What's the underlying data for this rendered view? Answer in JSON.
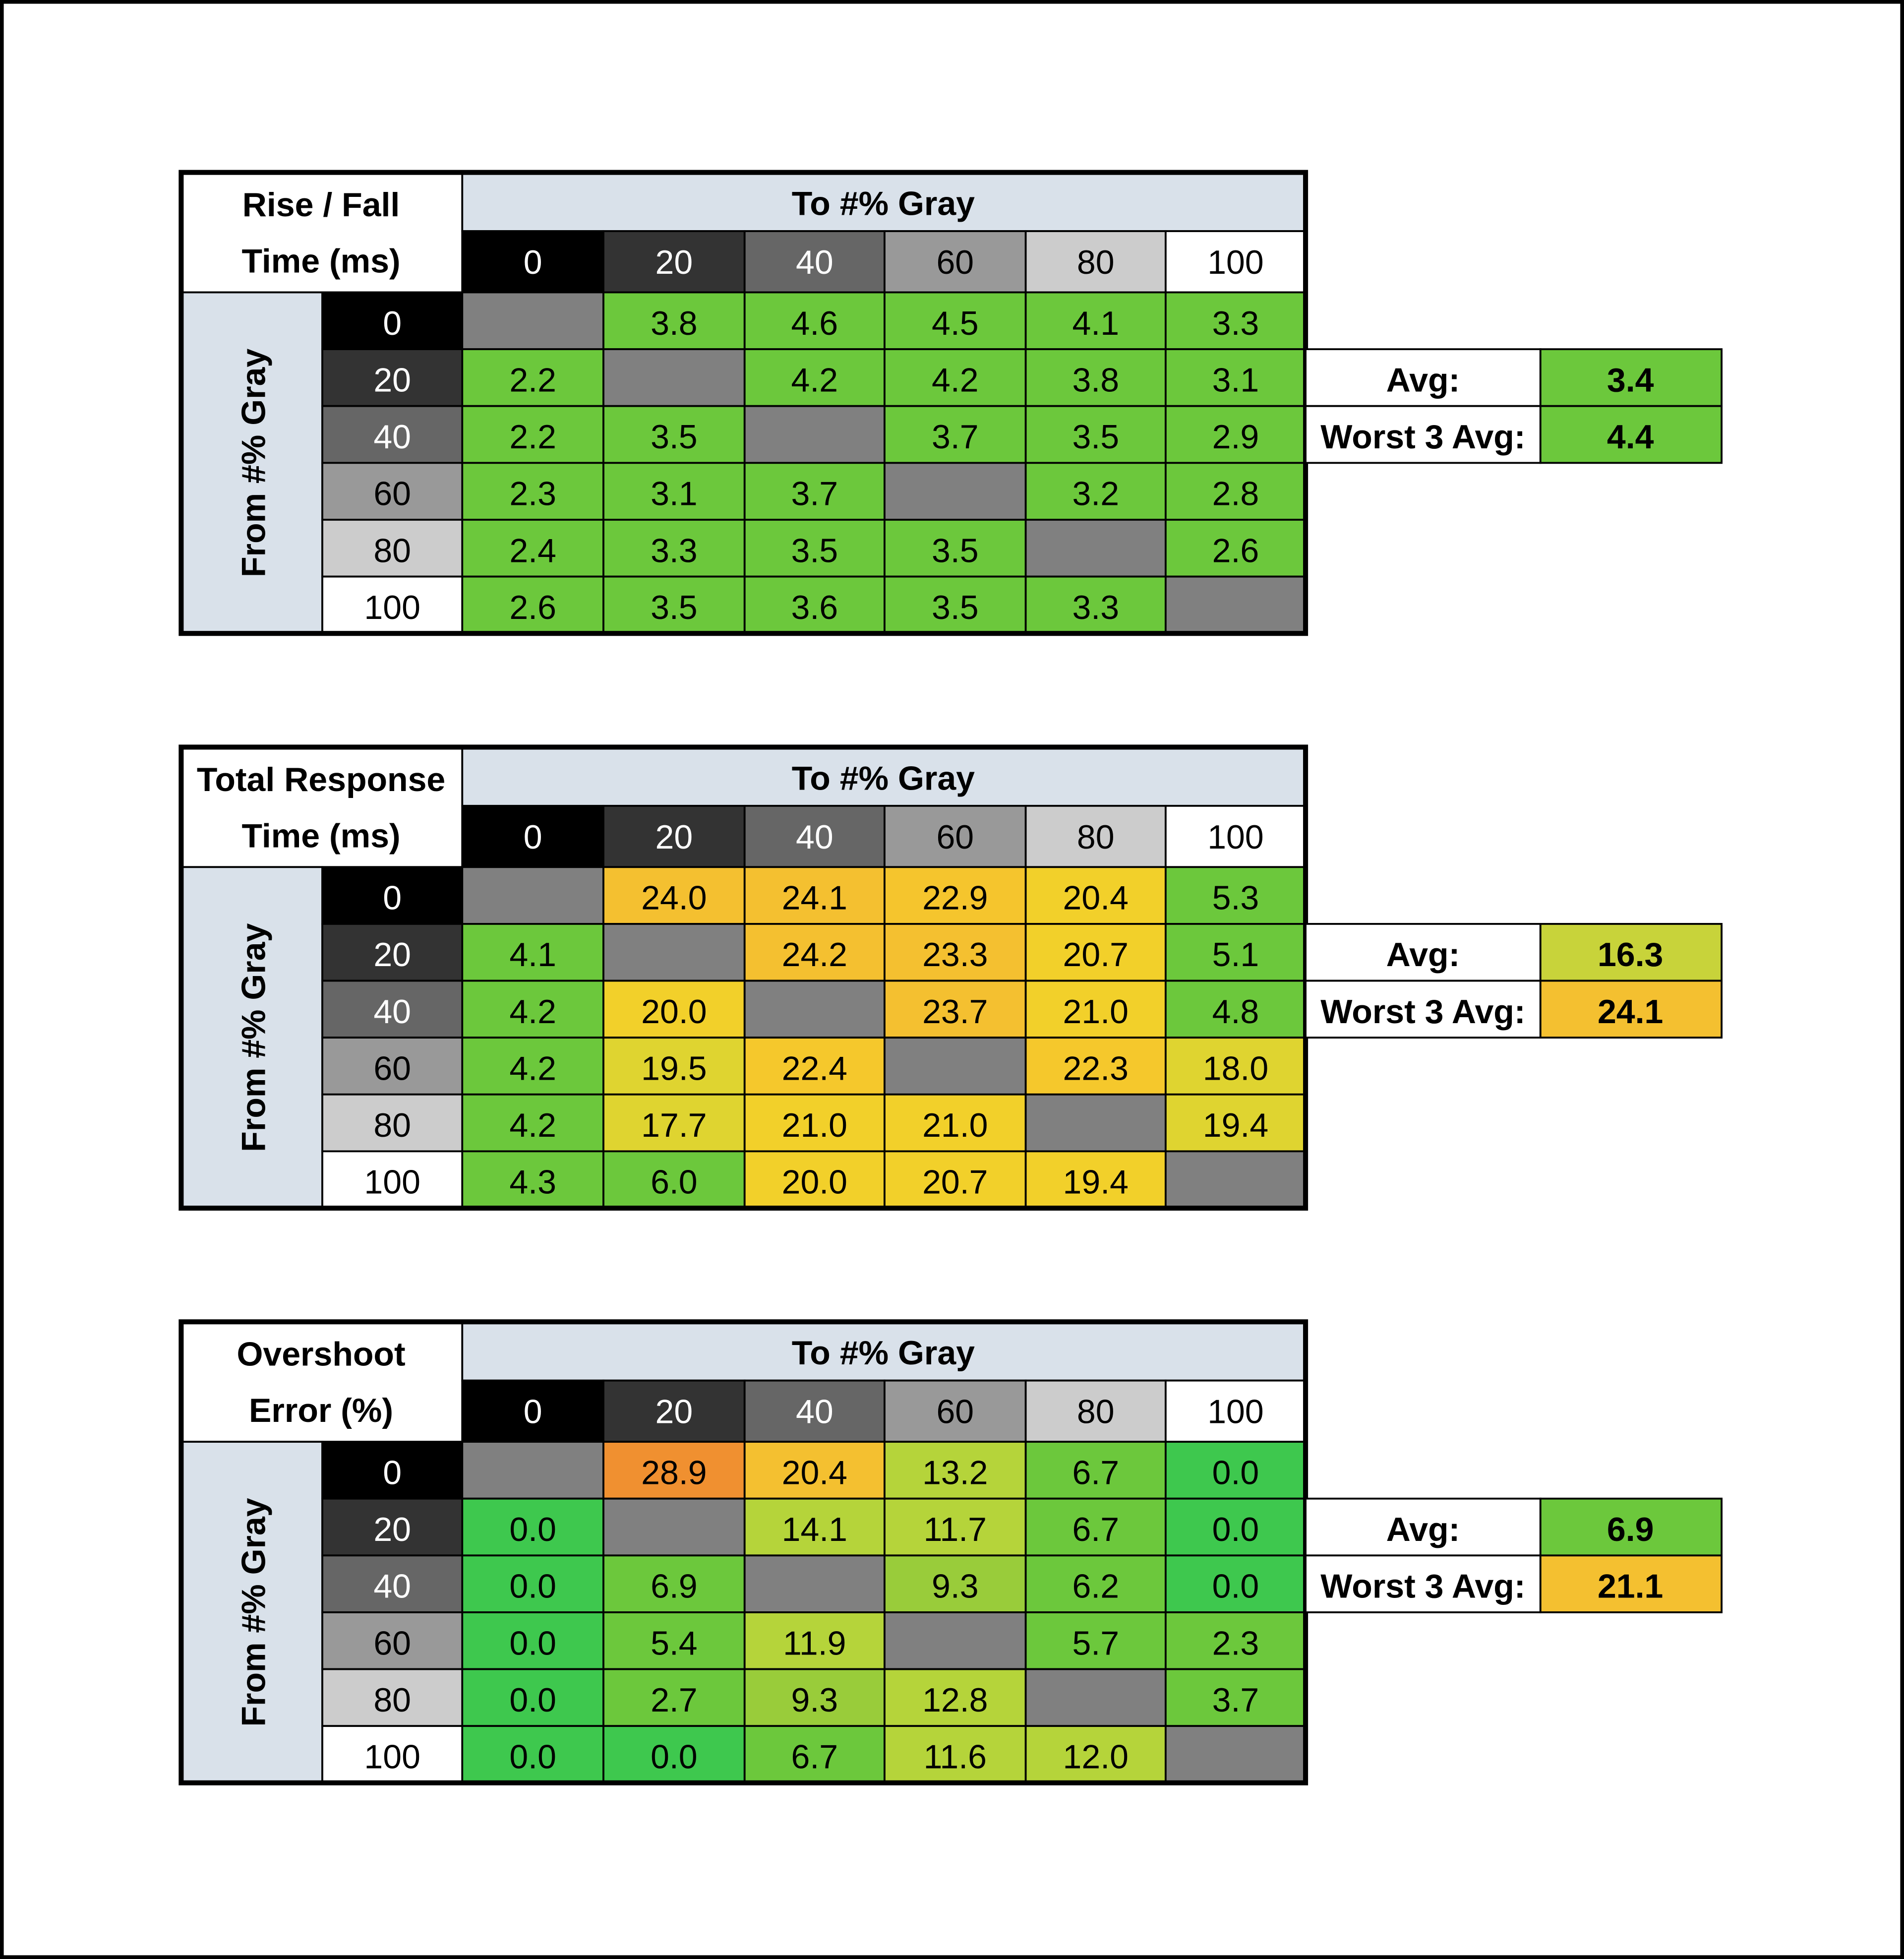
{
  "tables": [
    {
      "title_lines": [
        "Rise / Fall",
        "Time (ms)"
      ],
      "column_header": "To #% Gray",
      "row_header": "From #% Gray",
      "columns": [
        "0",
        "20",
        "40",
        "60",
        "80",
        "100"
      ],
      "rows": [
        "0",
        "20",
        "40",
        "60",
        "80",
        "100"
      ],
      "cells": [
        [
          null,
          "3.8",
          "4.6",
          "4.5",
          "4.1",
          "3.3"
        ],
        [
          "2.2",
          null,
          "4.2",
          "4.2",
          "3.8",
          "3.1"
        ],
        [
          "2.2",
          "3.5",
          null,
          "3.7",
          "3.5",
          "2.9"
        ],
        [
          "2.3",
          "3.1",
          "3.7",
          null,
          "3.2",
          "2.8"
        ],
        [
          "2.4",
          "3.3",
          "3.5",
          "3.5",
          null,
          "2.6"
        ],
        [
          "2.6",
          "3.5",
          "3.6",
          "3.5",
          "3.3",
          null
        ]
      ],
      "cell_colors": [
        [
          null,
          "#6cc83c",
          "#6cc83c",
          "#6cc83c",
          "#6cc83c",
          "#6cc83c"
        ],
        [
          "#6cc83c",
          null,
          "#6cc83c",
          "#6cc83c",
          "#6cc83c",
          "#6cc83c"
        ],
        [
          "#6cc83c",
          "#6cc83c",
          null,
          "#6cc83c",
          "#6cc83c",
          "#6cc83c"
        ],
        [
          "#6cc83c",
          "#6cc83c",
          "#6cc83c",
          null,
          "#6cc83c",
          "#6cc83c"
        ],
        [
          "#6cc83c",
          "#6cc83c",
          "#6cc83c",
          "#6cc83c",
          null,
          "#6cc83c"
        ],
        [
          "#6cc83c",
          "#6cc83c",
          "#6cc83c",
          "#6cc83c",
          "#6cc83c",
          null
        ]
      ],
      "avg_label": "Avg:",
      "avg": "3.4",
      "avg_color": "#6cc83c",
      "worst_label": "Worst 3 Avg:",
      "worst": "4.4",
      "worst_color": "#6cc83c"
    },
    {
      "title_lines": [
        "Total Response",
        "Time (ms)"
      ],
      "column_header": "To #% Gray",
      "row_header": "From #% Gray",
      "columns": [
        "0",
        "20",
        "40",
        "60",
        "80",
        "100"
      ],
      "rows": [
        "0",
        "20",
        "40",
        "60",
        "80",
        "100"
      ],
      "cells": [
        [
          null,
          "24.0",
          "24.1",
          "22.9",
          "20.4",
          "5.3"
        ],
        [
          "4.1",
          null,
          "24.2",
          "23.3",
          "20.7",
          "5.1"
        ],
        [
          "4.2",
          "20.0",
          null,
          "23.7",
          "21.0",
          "4.8"
        ],
        [
          "4.2",
          "19.5",
          "22.4",
          null,
          "22.3",
          "18.0"
        ],
        [
          "4.2",
          "17.7",
          "21.0",
          "21.0",
          null,
          "19.4"
        ],
        [
          "4.3",
          "6.0",
          "20.0",
          "20.7",
          "19.4",
          null
        ]
      ],
      "cell_colors": [
        [
          null,
          "#f4c030",
          "#f4c030",
          "#f5c52d",
          "#f2d02a",
          "#6cc83c"
        ],
        [
          "#6cc83c",
          null,
          "#f4c030",
          "#f4c030",
          "#f2d02a",
          "#6cc83c"
        ],
        [
          "#6cc83c",
          "#f2d02a",
          null,
          "#f4c030",
          "#f2d02a",
          "#6cc83c"
        ],
        [
          "#6cc83c",
          "#dfd430",
          "#f5c82c",
          null,
          "#f5c82c",
          "#dfd430"
        ],
        [
          "#6cc83c",
          "#dfd430",
          "#f2d02a",
          "#f2d02a",
          null,
          "#dfd430"
        ],
        [
          "#6cc83c",
          "#6cc83c",
          "#f2d02a",
          "#f2d02a",
          "#f2d02a",
          null
        ]
      ],
      "avg_label": "Avg:",
      "avg": "16.3",
      "avg_color": "#c8d33a",
      "worst_label": "Worst 3 Avg:",
      "worst": "24.1",
      "worst_color": "#f4c030"
    },
    {
      "title_lines": [
        "Overshoot",
        "Error (%)"
      ],
      "column_header": "To #% Gray",
      "row_header": "From #% Gray",
      "columns": [
        "0",
        "20",
        "40",
        "60",
        "80",
        "100"
      ],
      "rows": [
        "0",
        "20",
        "40",
        "60",
        "80",
        "100"
      ],
      "cells": [
        [
          null,
          "28.9",
          "20.4",
          "13.2",
          "6.7",
          "0.0"
        ],
        [
          "0.0",
          null,
          "14.1",
          "11.7",
          "6.7",
          "0.0"
        ],
        [
          "0.0",
          "6.9",
          null,
          "9.3",
          "6.2",
          "0.0"
        ],
        [
          "0.0",
          "5.4",
          "11.9",
          null,
          "5.7",
          "2.3"
        ],
        [
          "0.0",
          "2.7",
          "9.3",
          "12.8",
          null,
          "3.7"
        ],
        [
          "0.0",
          "0.0",
          "6.7",
          "11.6",
          "12.0",
          null
        ]
      ],
      "cell_colors": [
        [
          null,
          "#f09030",
          "#f4c030",
          "#b5d43a",
          "#6cc83c",
          "#3ec84e"
        ],
        [
          "#3ec84e",
          null,
          "#b5d43a",
          "#b5d43a",
          "#6cc83c",
          "#3ec84e"
        ],
        [
          "#3ec84e",
          "#6cc83c",
          null,
          "#99cc3a",
          "#6cc83c",
          "#3ec84e"
        ],
        [
          "#3ec84e",
          "#6cc83c",
          "#b5d43a",
          null,
          "#6cc83c",
          "#6cc83c"
        ],
        [
          "#3ec84e",
          "#6cc83c",
          "#99cc3a",
          "#b5d43a",
          null,
          "#6cc83c"
        ],
        [
          "#3ec84e",
          "#3ec84e",
          "#6cc83c",
          "#b5d43a",
          "#b5d43a",
          null
        ]
      ],
      "avg_label": "Avg:",
      "avg": "6.9",
      "avg_color": "#6cc83c",
      "worst_label": "Worst 3 Avg:",
      "worst": "21.1",
      "worst_color": "#f4c030"
    }
  ]
}
